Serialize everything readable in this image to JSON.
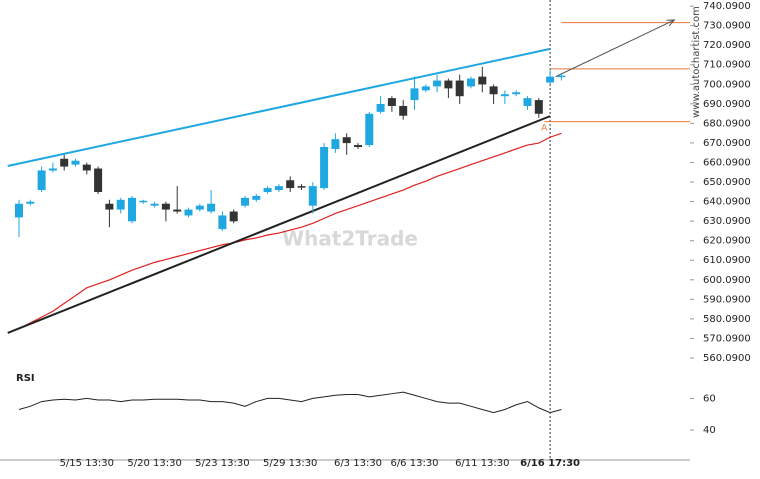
{
  "chart_data": {
    "type": "candlestick",
    "title": "RSI",
    "watermark": "What2Trade",
    "source": "www.autochartist.com",
    "pattern_label": "A",
    "up_color": "#1ea7e1",
    "down_color": "#333333",
    "categories": [
      null,
      null,
      null,
      null,
      null,
      null,
      "5/15 13:30",
      null,
      null,
      null,
      null,
      null,
      "5/20 13:30",
      null,
      null,
      null,
      null,
      null,
      "5/23 13:30",
      null,
      null,
      null,
      null,
      null,
      "5/29 13:30",
      null,
      null,
      null,
      null,
      null,
      "6/3 13:30",
      null,
      null,
      null,
      null,
      "6/6 13:30",
      null,
      null,
      null,
      null,
      null,
      "6/11 13:30",
      null,
      null,
      null,
      null,
      null,
      "6/16 17:30",
      null
    ],
    "open": [
      632,
      639,
      646,
      656,
      662,
      659,
      659,
      657,
      639,
      636,
      630,
      640,
      638,
      639,
      636,
      633,
      636,
      635,
      626,
      635,
      638,
      641,
      645,
      646,
      651,
      648,
      638,
      647,
      667,
      673,
      669,
      669,
      686,
      693,
      689,
      692,
      697,
      699,
      702,
      702,
      699,
      704,
      699,
      694,
      695,
      689,
      692,
      701,
      704
    ],
    "high": [
      641,
      641,
      658,
      660,
      664,
      662,
      660,
      658,
      641,
      642,
      643,
      641,
      640,
      640,
      648,
      637,
      639,
      646,
      635,
      636,
      643,
      644,
      648,
      649,
      653,
      649,
      650,
      670,
      675,
      675,
      670,
      686,
      694,
      694,
      692,
      704,
      700,
      705,
      703,
      705,
      704,
      709,
      700,
      697,
      697,
      694,
      693,
      708,
      706
    ],
    "low": [
      622,
      638,
      645,
      655,
      656,
      658,
      654,
      644,
      627,
      634,
      629,
      639,
      637,
      630,
      634,
      632,
      635,
      634,
      625,
      629,
      637,
      640,
      644,
      645,
      645,
      646,
      634,
      646,
      665,
      664,
      667,
      668,
      685,
      686,
      682,
      687,
      696,
      696,
      693,
      690,
      698,
      696,
      690,
      690,
      694,
      687,
      683,
      700,
      702
    ],
    "close": [
      639,
      640,
      656,
      657,
      658,
      661,
      656,
      645,
      636,
      641,
      642,
      640.5,
      639,
      636,
      635,
      636,
      638,
      639,
      633,
      630,
      642,
      643,
      647,
      648,
      647,
      647.5,
      648,
      668,
      672,
      670,
      668,
      685,
      690,
      689,
      684,
      698,
      699,
      702,
      698,
      694,
      703,
      700,
      695,
      695,
      696,
      693,
      685,
      704,
      704.5
    ],
    "ma": {
      "color": "#e02020",
      "values": [
        575,
        578,
        581,
        584,
        588,
        592,
        596,
        598,
        600,
        602.5,
        605,
        607,
        609,
        610.5,
        612,
        613.5,
        615,
        616.5,
        618,
        619,
        620.5,
        621.5,
        623,
        624,
        625.5,
        627,
        629,
        631.5,
        634,
        636,
        638,
        640,
        642,
        644,
        646,
        648.5,
        650.5,
        653,
        655,
        657,
        659,
        661,
        663,
        665,
        667,
        669,
        670,
        673,
        675
      ]
    },
    "trend_lines": [
      {
        "color": "#1ea7e1",
        "x": [
          -1,
          47
        ],
        "values": [
          658.3,
          718.2
        ]
      },
      {
        "color": "#222222",
        "x": [
          -1,
          47
        ],
        "values": [
          572.9,
          683.8
        ]
      },
      {
        "color": "#555555",
        "x": [
          47.5,
          58
        ],
        "values": [
          704,
          733
        ]
      }
    ],
    "levels": [
      {
        "color": "#e8763a",
        "start": 48,
        "value": 731.6
      },
      {
        "color": "#e8763a",
        "start": 47,
        "value": 708
      },
      {
        "color": "#e8763a",
        "start": 46.5,
        "value": 681
      }
    ],
    "marker_index": 47,
    "ylim": [
      556.5,
      743.2
    ],
    "yticks": [
      {
        "value": 740.09,
        "label": "740.0900"
      },
      {
        "value": 730.09,
        "label": "730.0900"
      },
      {
        "value": 720.09,
        "label": "720.0900"
      },
      {
        "value": 710.09,
        "label": "710.0900"
      },
      {
        "value": 700.09,
        "label": "700.0900"
      },
      {
        "value": 690.09,
        "label": "690.0900"
      },
      {
        "value": 680.09,
        "label": "680.0900"
      },
      {
        "value": 670.09,
        "label": "670.0900"
      },
      {
        "value": 660.09,
        "label": "660.0900"
      },
      {
        "value": 650.09,
        "label": "650.0900"
      },
      {
        "value": 640.09,
        "label": "640.0900"
      },
      {
        "value": 630.09,
        "label": "630.0900"
      },
      {
        "value": 620.09,
        "label": "620.0900"
      },
      {
        "value": 610.09,
        "label": "610.0900"
      },
      {
        "value": 600.09,
        "label": "600.0900"
      },
      {
        "value": 590.09,
        "label": "590.0900"
      },
      {
        "value": 580.09,
        "label": "580.0900"
      },
      {
        "value": 570.09,
        "label": "570.0900"
      },
      {
        "value": 560.09,
        "label": "560.0900"
      }
    ],
    "rsi": {
      "color": "#222222",
      "values": [
        53,
        55,
        58,
        59,
        59.5,
        59,
        60,
        59,
        59,
        58,
        59,
        59,
        59.5,
        59.5,
        59.5,
        59,
        59,
        58,
        58,
        57,
        55,
        58,
        60,
        60,
        59,
        58,
        60,
        61,
        62,
        62.5,
        62.5,
        61,
        62,
        63,
        64,
        62,
        60,
        58,
        57,
        57,
        55,
        53,
        51,
        53,
        56,
        58,
        54,
        51,
        53
      ],
      "ylim": [
        21,
        78
      ],
      "yticks": [
        60,
        40
      ]
    }
  }
}
